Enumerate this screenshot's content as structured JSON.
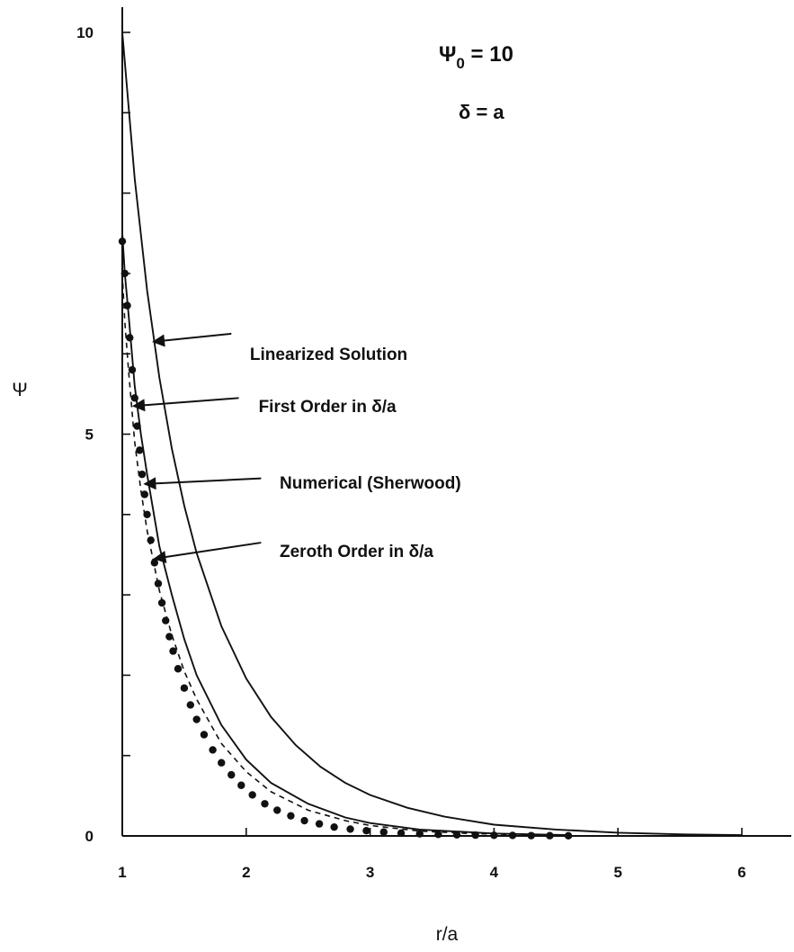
{
  "chart_data": {
    "type": "line",
    "xlabel": "r/a",
    "ylabel": "Ψ",
    "xlim": [
      1,
      6.4
    ],
    "ylim": [
      0,
      10.3
    ],
    "x_ticks": [
      1,
      2,
      3,
      4,
      5,
      6
    ],
    "y_ticks": [
      0,
      1,
      2,
      3,
      4,
      5,
      6,
      7,
      8,
      9,
      10
    ],
    "y_tick_labels": [
      {
        "value": 0,
        "label": "0"
      },
      {
        "value": 5,
        "label": "5"
      },
      {
        "value": 10,
        "label": "10"
      }
    ],
    "x_tick_labels": [
      {
        "value": 1,
        "label": "1"
      },
      {
        "value": 2,
        "label": "2"
      },
      {
        "value": 3,
        "label": "3"
      },
      {
        "value": 4,
        "label": "4"
      },
      {
        "value": 5,
        "label": "5"
      },
      {
        "value": 6,
        "label": "6"
      }
    ],
    "grid": false,
    "parameters": [
      {
        "symbol": "Ψ",
        "subscript": "0",
        "text": " = 10"
      },
      {
        "symbol": "δ",
        "subscript": "",
        "text": " = a"
      }
    ],
    "series": [
      {
        "name": "Linearized Solution",
        "style": "solid",
        "color": "#111111",
        "x": [
          1.0,
          1.1,
          1.2,
          1.3,
          1.4,
          1.5,
          1.6,
          1.8,
          2.0,
          2.2,
          2.4,
          2.6,
          2.8,
          3.0,
          3.3,
          3.6,
          4.0,
          4.5,
          5.0,
          5.5,
          6.0
        ],
        "y": [
          10.0,
          8.18,
          6.79,
          5.7,
          4.82,
          4.11,
          3.52,
          2.61,
          1.96,
          1.48,
          1.13,
          0.86,
          0.66,
          0.51,
          0.35,
          0.24,
          0.14,
          0.08,
          0.04,
          0.02,
          0.01
        ]
      },
      {
        "name": "First Order in δ/a",
        "style": "solid",
        "color": "#111111",
        "x": [
          1.0,
          1.02,
          1.05,
          1.1,
          1.15,
          1.2,
          1.3,
          1.4,
          1.5,
          1.6,
          1.8,
          2.0,
          2.2,
          2.5,
          2.8,
          3.0,
          3.4,
          4.0,
          4.6
        ],
        "y": [
          7.5,
          7.0,
          6.5,
          5.6,
          5.0,
          4.5,
          3.6,
          3.0,
          2.45,
          2.0,
          1.38,
          0.95,
          0.66,
          0.4,
          0.23,
          0.16,
          0.08,
          0.03,
          0.01
        ]
      },
      {
        "name": "Numerical (Sherwood)",
        "style": "markers",
        "color": "#111111",
        "x": [
          1.0,
          1.02,
          1.04,
          1.06,
          1.08,
          1.1,
          1.12,
          1.14,
          1.16,
          1.18,
          1.2,
          1.23,
          1.26,
          1.29,
          1.32,
          1.35,
          1.38,
          1.41,
          1.45,
          1.5,
          1.55,
          1.6,
          1.66,
          1.73,
          1.8,
          1.88,
          1.96,
          2.05,
          2.15,
          2.25,
          2.36,
          2.47,
          2.59,
          2.71,
          2.84,
          2.97,
          3.11,
          3.25,
          3.4,
          3.55,
          3.7,
          3.85,
          4.0,
          4.15,
          4.3,
          4.45,
          4.6
        ],
        "y": [
          7.4,
          7.0,
          6.6,
          6.2,
          5.8,
          5.45,
          5.1,
          4.8,
          4.5,
          4.25,
          4.0,
          3.68,
          3.4,
          3.14,
          2.9,
          2.68,
          2.48,
          2.3,
          2.08,
          1.84,
          1.63,
          1.45,
          1.26,
          1.07,
          0.91,
          0.76,
          0.63,
          0.51,
          0.4,
          0.32,
          0.25,
          0.19,
          0.15,
          0.11,
          0.085,
          0.065,
          0.048,
          0.035,
          0.026,
          0.019,
          0.014,
          0.01,
          0.008,
          0.006,
          0.004,
          0.003,
          0.002
        ]
      },
      {
        "name": "Zeroth Order in δ/a",
        "style": "dashed",
        "color": "#111111",
        "x": [
          1.0,
          1.02,
          1.05,
          1.1,
          1.15,
          1.2,
          1.3,
          1.4,
          1.5,
          1.6,
          1.8,
          2.0,
          2.2,
          2.5,
          2.8,
          3.0,
          3.4,
          3.8,
          4.3,
          4.6
        ],
        "y": [
          7.0,
          6.4,
          5.8,
          4.9,
          4.3,
          3.8,
          3.05,
          2.5,
          2.05,
          1.7,
          1.15,
          0.8,
          0.55,
          0.32,
          0.19,
          0.13,
          0.06,
          0.03,
          0.012,
          0.006
        ]
      }
    ],
    "annotations": [
      {
        "text": "Linearized Solution",
        "label_x": 2.03,
        "label_y": 6.0,
        "arrow_tail_x": 1.88,
        "arrow_tail_y": 6.25,
        "arrow_head_x": 1.25,
        "arrow_head_y": 6.15
      },
      {
        "text": "First Order in δ/a",
        "label_x": 2.1,
        "label_y": 5.35,
        "arrow_tail_x": 1.94,
        "arrow_tail_y": 5.45,
        "arrow_head_x": 1.09,
        "arrow_head_y": 5.35
      },
      {
        "text": "Numerical (Sherwood)",
        "label_x": 2.27,
        "label_y": 4.4,
        "arrow_tail_x": 2.12,
        "arrow_tail_y": 4.45,
        "arrow_head_x": 1.18,
        "arrow_head_y": 4.38
      },
      {
        "text": "Zeroth Order in δ/a",
        "label_x": 2.27,
        "label_y": 3.55,
        "arrow_tail_x": 2.12,
        "arrow_tail_y": 3.65,
        "arrow_head_x": 1.26,
        "arrow_head_y": 3.45
      }
    ]
  }
}
